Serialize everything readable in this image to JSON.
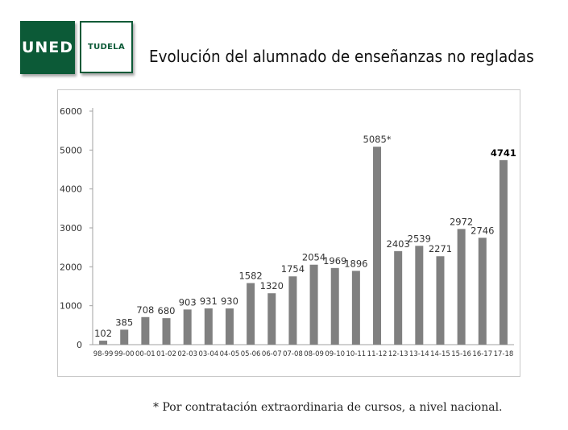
{
  "header": {
    "logo_left": "UNED",
    "logo_right": "TUDELA",
    "title": "Evolución del alumnado de enseñanzas no regladas"
  },
  "footnote": "* Por contratación extraordinaria de cursos, a nivel nacional.",
  "colors": {
    "brand": "#0c5a37",
    "bar": "#808080"
  },
  "chart_data": {
    "type": "bar",
    "title": "",
    "xlabel": "",
    "ylabel": "",
    "ylim": [
      0,
      6000
    ],
    "yticks": [
      0,
      1000,
      2000,
      3000,
      4000,
      5000,
      6000
    ],
    "grid": false,
    "legend": "none",
    "categories": [
      "98-99",
      "99-00",
      "00-01",
      "01-02",
      "02-03",
      "03-04",
      "04-05",
      "05-06",
      "06-07",
      "07-08",
      "08-09",
      "09-10",
      "10-11",
      "11-12",
      "12-13",
      "13-14",
      "14-15",
      "15-16",
      "16-17",
      "17-18"
    ],
    "values": [
      102,
      385,
      708,
      680,
      903,
      931,
      930,
      1582,
      1320,
      1754,
      2054,
      1969,
      1896,
      5085,
      2403,
      2539,
      2271,
      2972,
      2746,
      4741
    ],
    "data_labels": [
      "102",
      "385",
      "708",
      "680",
      "903",
      "931",
      "930",
      "1582",
      "1320",
      "1754",
      "2054",
      "1969",
      "1896",
      "5085*",
      "2403",
      "2539",
      "2271",
      "2972",
      "2746",
      "4741"
    ]
  }
}
